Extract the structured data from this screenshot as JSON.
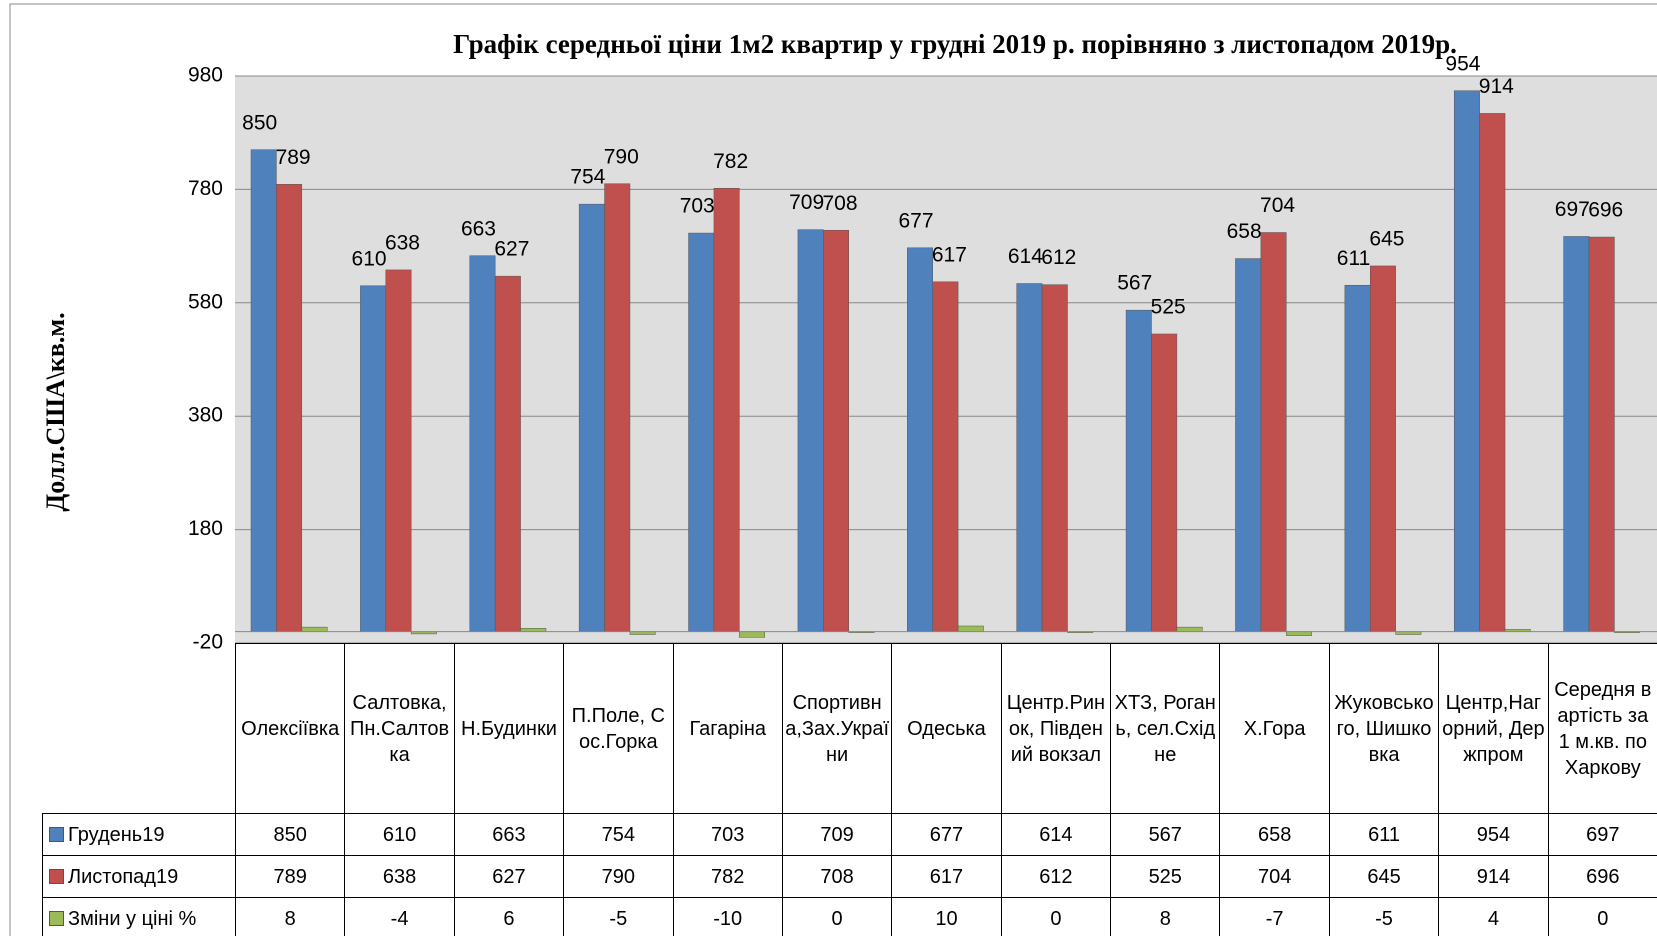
{
  "chart_data": {
    "type": "bar",
    "title": "Графік середньої ціни 1м2 квартир у грудні 2019 р. порівняно з листопадом  2019р.",
    "y_label": "Долл.США\\кв.м.",
    "categories": [
      "Олексіївка",
      "Салтовка,Пн.Салтовка",
      "Н.Будинки",
      "П.Поле, Сос.Горка",
      "Гагаріна",
      "Спортивна,Зах.України",
      "Одеська",
      "Центр.Ринок, Південий вокзал",
      "ХТЗ, Рогань, сел.Східне",
      "Х.Гора",
      "Жуковського, Шишковка",
      "Центр,Нагорний, Держпром",
      "Середня вартість за 1 м.кв. по Харкову"
    ],
    "series": [
      {
        "name": "Грудень19",
        "color": "#4f81bd",
        "values": [
          850,
          610,
          663,
          754,
          703,
          709,
          677,
          614,
          567,
          658,
          611,
          954,
          697
        ]
      },
      {
        "name": "Листопад19",
        "color": "#c0504d",
        "values": [
          789,
          638,
          627,
          790,
          782,
          708,
          617,
          612,
          525,
          704,
          645,
          914,
          696
        ]
      },
      {
        "name": "Зміни у ціні %",
        "color": "#9bbb59",
        "values": [
          8,
          -4,
          6,
          -5,
          -10,
          0,
          10,
          0,
          8,
          -7,
          -5,
          4,
          0
        ]
      }
    ],
    "ylim": [
      -20,
      980
    ],
    "yticks": [
      -20,
      180,
      380,
      580,
      780,
      980
    ],
    "grid": true,
    "data_labels_series": [
      0,
      1
    ],
    "data_table": true
  }
}
